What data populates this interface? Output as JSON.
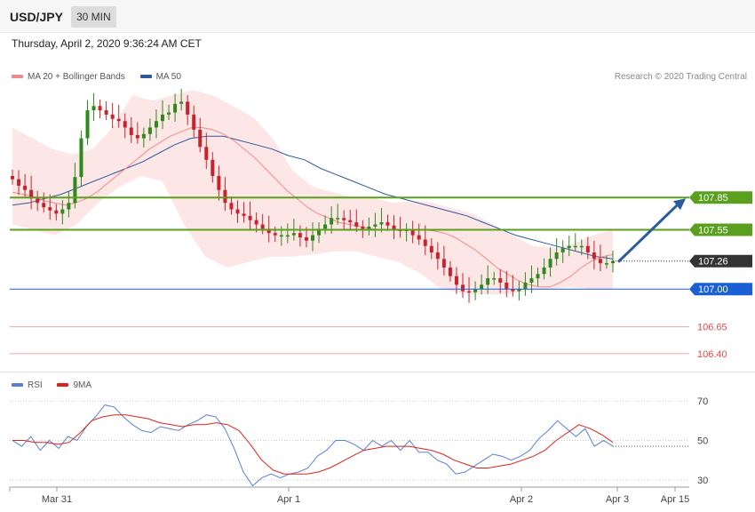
{
  "header": {
    "symbol": "USD/JPY",
    "timeframe": "30 MIN",
    "datetime": "Thursday, April 2, 2020 9:36:24 AM CET"
  },
  "legend_main": [
    {
      "label": "MA 20 + Bollinger Bands",
      "color": "#f08a8a"
    },
    {
      "label": "MA 50",
      "color": "#2d5a9e"
    }
  ],
  "copyright": "Research © 2020 Trading Central",
  "legend_rsi": [
    {
      "label": "RSI",
      "color": "#5b7fd6"
    },
    {
      "label": "9MA",
      "color": "#d9241c"
    }
  ],
  "colors": {
    "resistance": "#5aa01e",
    "support": "#1a5fd6",
    "target": "#e04a4a",
    "current": "#333333",
    "up_candle": "#2f8a1e",
    "down_candle": "#c8232c",
    "arrow": "#2d5a9e",
    "band_fill": "#fde2e2",
    "ma20": "#f08a8a",
    "ma50": "#2d5a9e"
  },
  "chart_data": {
    "type": "candlestick",
    "title": "USD/JPY",
    "timeframe": "30 MIN",
    "ylim": [
      106.3,
      108.9
    ],
    "x_labels": [
      "Mar 31",
      "Apr 1",
      "Apr 2",
      "Apr 3",
      "Apr 15"
    ],
    "levels": [
      {
        "name": "resistance-2",
        "value": 107.85,
        "label": "107.85",
        "kind": "resistance"
      },
      {
        "name": "resistance-1",
        "value": 107.55,
        "label": "107.55",
        "kind": "resistance"
      },
      {
        "name": "current",
        "value": 107.26,
        "label": "107.26",
        "kind": "current"
      },
      {
        "name": "support-1",
        "value": 107.0,
        "label": "107.00",
        "kind": "support"
      },
      {
        "name": "target-1",
        "value": 106.65,
        "label": "106.65",
        "kind": "target"
      },
      {
        "name": "target-2",
        "value": 106.4,
        "label": "106.40",
        "kind": "target"
      }
    ],
    "candle_closes": [
      108.02,
      107.96,
      107.92,
      107.84,
      107.8,
      107.76,
      107.73,
      107.7,
      107.74,
      107.8,
      108.04,
      108.4,
      108.66,
      108.7,
      108.66,
      108.62,
      108.58,
      108.56,
      108.5,
      108.43,
      108.4,
      108.44,
      108.5,
      108.56,
      108.62,
      108.64,
      108.72,
      108.74,
      108.62,
      108.48,
      108.32,
      108.2,
      108.05,
      107.92,
      107.8,
      107.74,
      107.7,
      107.68,
      107.64,
      107.6,
      107.56,
      107.52,
      107.5,
      107.5,
      107.5,
      107.52,
      107.48,
      107.45,
      107.5,
      107.56,
      107.6,
      107.66,
      107.66,
      107.64,
      107.62,
      107.58,
      107.56,
      107.58,
      107.6,
      107.62,
      107.59,
      107.55,
      107.54,
      107.55,
      107.5,
      107.46,
      107.4,
      107.34,
      107.28,
      107.2,
      107.12,
      107.04,
      106.98,
      106.97,
      107.0,
      107.04,
      107.1,
      107.1,
      107.06,
      107.0,
      106.98,
      107.0,
      107.06,
      107.1,
      107.14,
      107.2,
      107.28,
      107.34,
      107.38,
      107.4,
      107.4,
      107.4,
      107.34,
      107.28,
      107.24,
      107.24,
      107.26
    ],
    "ma20": [
      107.9,
      107.88,
      107.86,
      107.82,
      107.8,
      107.78,
      107.8,
      107.84,
      107.9,
      107.98,
      108.06,
      108.14,
      108.22,
      108.3,
      108.36,
      108.42,
      108.46,
      108.5,
      108.5,
      108.48,
      108.44,
      108.38,
      108.3,
      108.22,
      108.12,
      108.02,
      107.92,
      107.84,
      107.76,
      107.7,
      107.66,
      107.62,
      107.6,
      107.58,
      107.56,
      107.55,
      107.55,
      107.55,
      107.55,
      107.55,
      107.54,
      107.52,
      107.48,
      107.42,
      107.36,
      107.28,
      107.2,
      107.14,
      107.08,
      107.04,
      107.02,
      107.02,
      107.06,
      107.12,
      107.2,
      107.26,
      107.3,
      107.32
    ],
    "bb_upper": [
      108.5,
      108.4,
      108.3,
      108.25,
      108.3,
      108.5,
      108.8,
      108.75,
      108.8,
      108.85,
      108.8,
      108.7,
      108.6,
      108.4,
      108.1,
      107.95,
      107.9,
      107.85,
      107.85,
      107.8,
      107.82,
      107.8,
      107.75,
      107.7,
      107.6,
      107.5,
      107.4,
      107.38,
      107.42,
      107.5,
      107.55
    ],
    "bb_lower": [
      107.6,
      107.55,
      107.5,
      107.6,
      107.8,
      107.95,
      108.05,
      108.0,
      107.6,
      107.3,
      107.2,
      107.25,
      107.3,
      107.3,
      107.32,
      107.35,
      107.35,
      107.3,
      107.25,
      107.15,
      107.0,
      106.96,
      106.95,
      106.95,
      106.98,
      107.0,
      107.02,
      107.0,
      107.0
    ],
    "ma50": [
      107.78,
      107.8,
      107.84,
      107.88,
      107.94,
      108.0,
      108.06,
      108.12,
      108.18,
      108.26,
      108.34,
      108.4,
      108.42,
      108.42,
      108.38,
      108.34,
      108.3,
      108.24,
      108.2,
      108.12,
      108.06,
      108.0,
      107.94,
      107.88,
      107.84,
      107.8,
      107.76,
      107.72,
      107.68,
      107.62,
      107.56,
      107.5,
      107.46,
      107.42,
      107.38,
      107.34,
      107.3,
      107.28
    ],
    "rsi": {
      "ylim": [
        20,
        80
      ],
      "ticks": [
        70,
        50,
        30
      ],
      "rsi_values": [
        50,
        47,
        52,
        45,
        50,
        46,
        52,
        50,
        57,
        62,
        68,
        67,
        62,
        58,
        55,
        54,
        57,
        56,
        55,
        58,
        60,
        63,
        62,
        56,
        46,
        34,
        27,
        31,
        33,
        31,
        33,
        34,
        36,
        42,
        45,
        50,
        50,
        48,
        45,
        50,
        47,
        50,
        45,
        50,
        44,
        44,
        40,
        38,
        33,
        34,
        37,
        40,
        43,
        42,
        40,
        42,
        45,
        51,
        55,
        60,
        56,
        52,
        56,
        47,
        50,
        47
      ],
      "ma_values": [
        50,
        50,
        49,
        49,
        48,
        49,
        54,
        60,
        62,
        63,
        63,
        62,
        61,
        59,
        58,
        57,
        58,
        58,
        59,
        58,
        55,
        48,
        40,
        35,
        33,
        33,
        33,
        34,
        36,
        39,
        42,
        45,
        46,
        47,
        47,
        47,
        46,
        45,
        43,
        40,
        38,
        36,
        36,
        37,
        38,
        40,
        42,
        45,
        50,
        54,
        58,
        56,
        53,
        49
      ]
    },
    "projection_arrow": {
      "from": 107.26,
      "to": 107.85
    }
  }
}
